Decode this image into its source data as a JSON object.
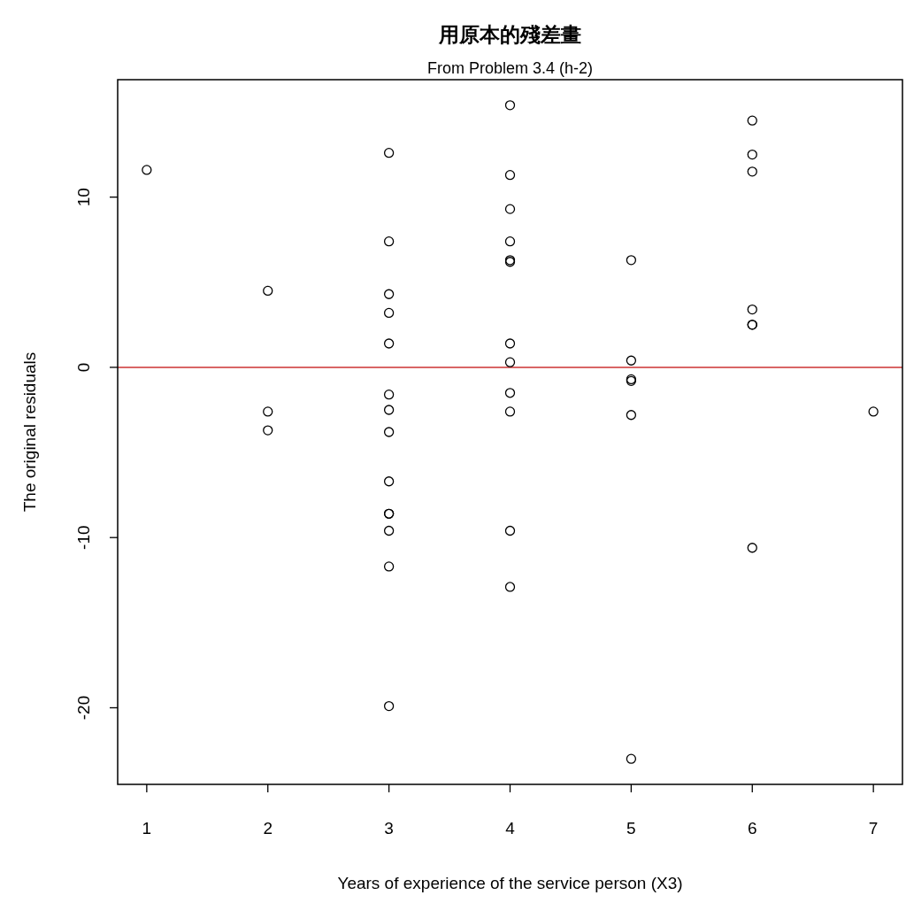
{
  "chart_data": {
    "type": "scatter",
    "title": "用原本的殘差畫",
    "subtitle": "From Problem 3.4 (h-2)",
    "xlabel": "Years of experience of the service person (X3)",
    "ylabel": "The original residuals",
    "series": [
      {
        "color": "#000000",
        "x": [
          1,
          2,
          2,
          2,
          3,
          3,
          3,
          3,
          3,
          3,
          3,
          3,
          3,
          3,
          3,
          3,
          3,
          3,
          4,
          4,
          4,
          4,
          4,
          4,
          4,
          4,
          4,
          4,
          4,
          4,
          5,
          5,
          5,
          5,
          5,
          5,
          6,
          6,
          6,
          6,
          6,
          6,
          6,
          7
        ],
        "values": [
          11.6,
          4.5,
          -2.6,
          -3.7,
          12.6,
          7.4,
          4.3,
          3.2,
          1.4,
          -1.6,
          -2.5,
          -3.8,
          -6.7,
          -8.6,
          -8.6,
          -9.6,
          -11.7,
          -19.9,
          15.4,
          11.3,
          9.3,
          7.4,
          6.3,
          6.2,
          1.4,
          0.3,
          -1.5,
          -2.6,
          -9.6,
          -12.9,
          6.3,
          0.4,
          -0.7,
          -0.8,
          -2.8,
          -23.0,
          14.5,
          12.5,
          11.5,
          3.4,
          2.5,
          2.5,
          -10.6,
          -2.6
        ]
      }
    ],
    "marker": "circle",
    "xlim": [
      0.76,
      7.24
    ],
    "ylim": [
      -24.5,
      16.9
    ],
    "xticks": [
      1,
      2,
      3,
      4,
      5,
      6,
      7
    ],
    "yticks": [
      -20,
      -10,
      0,
      10
    ],
    "ref_lines": [
      {
        "axis": "y",
        "value": 0,
        "color": "#cc3333"
      }
    ]
  }
}
